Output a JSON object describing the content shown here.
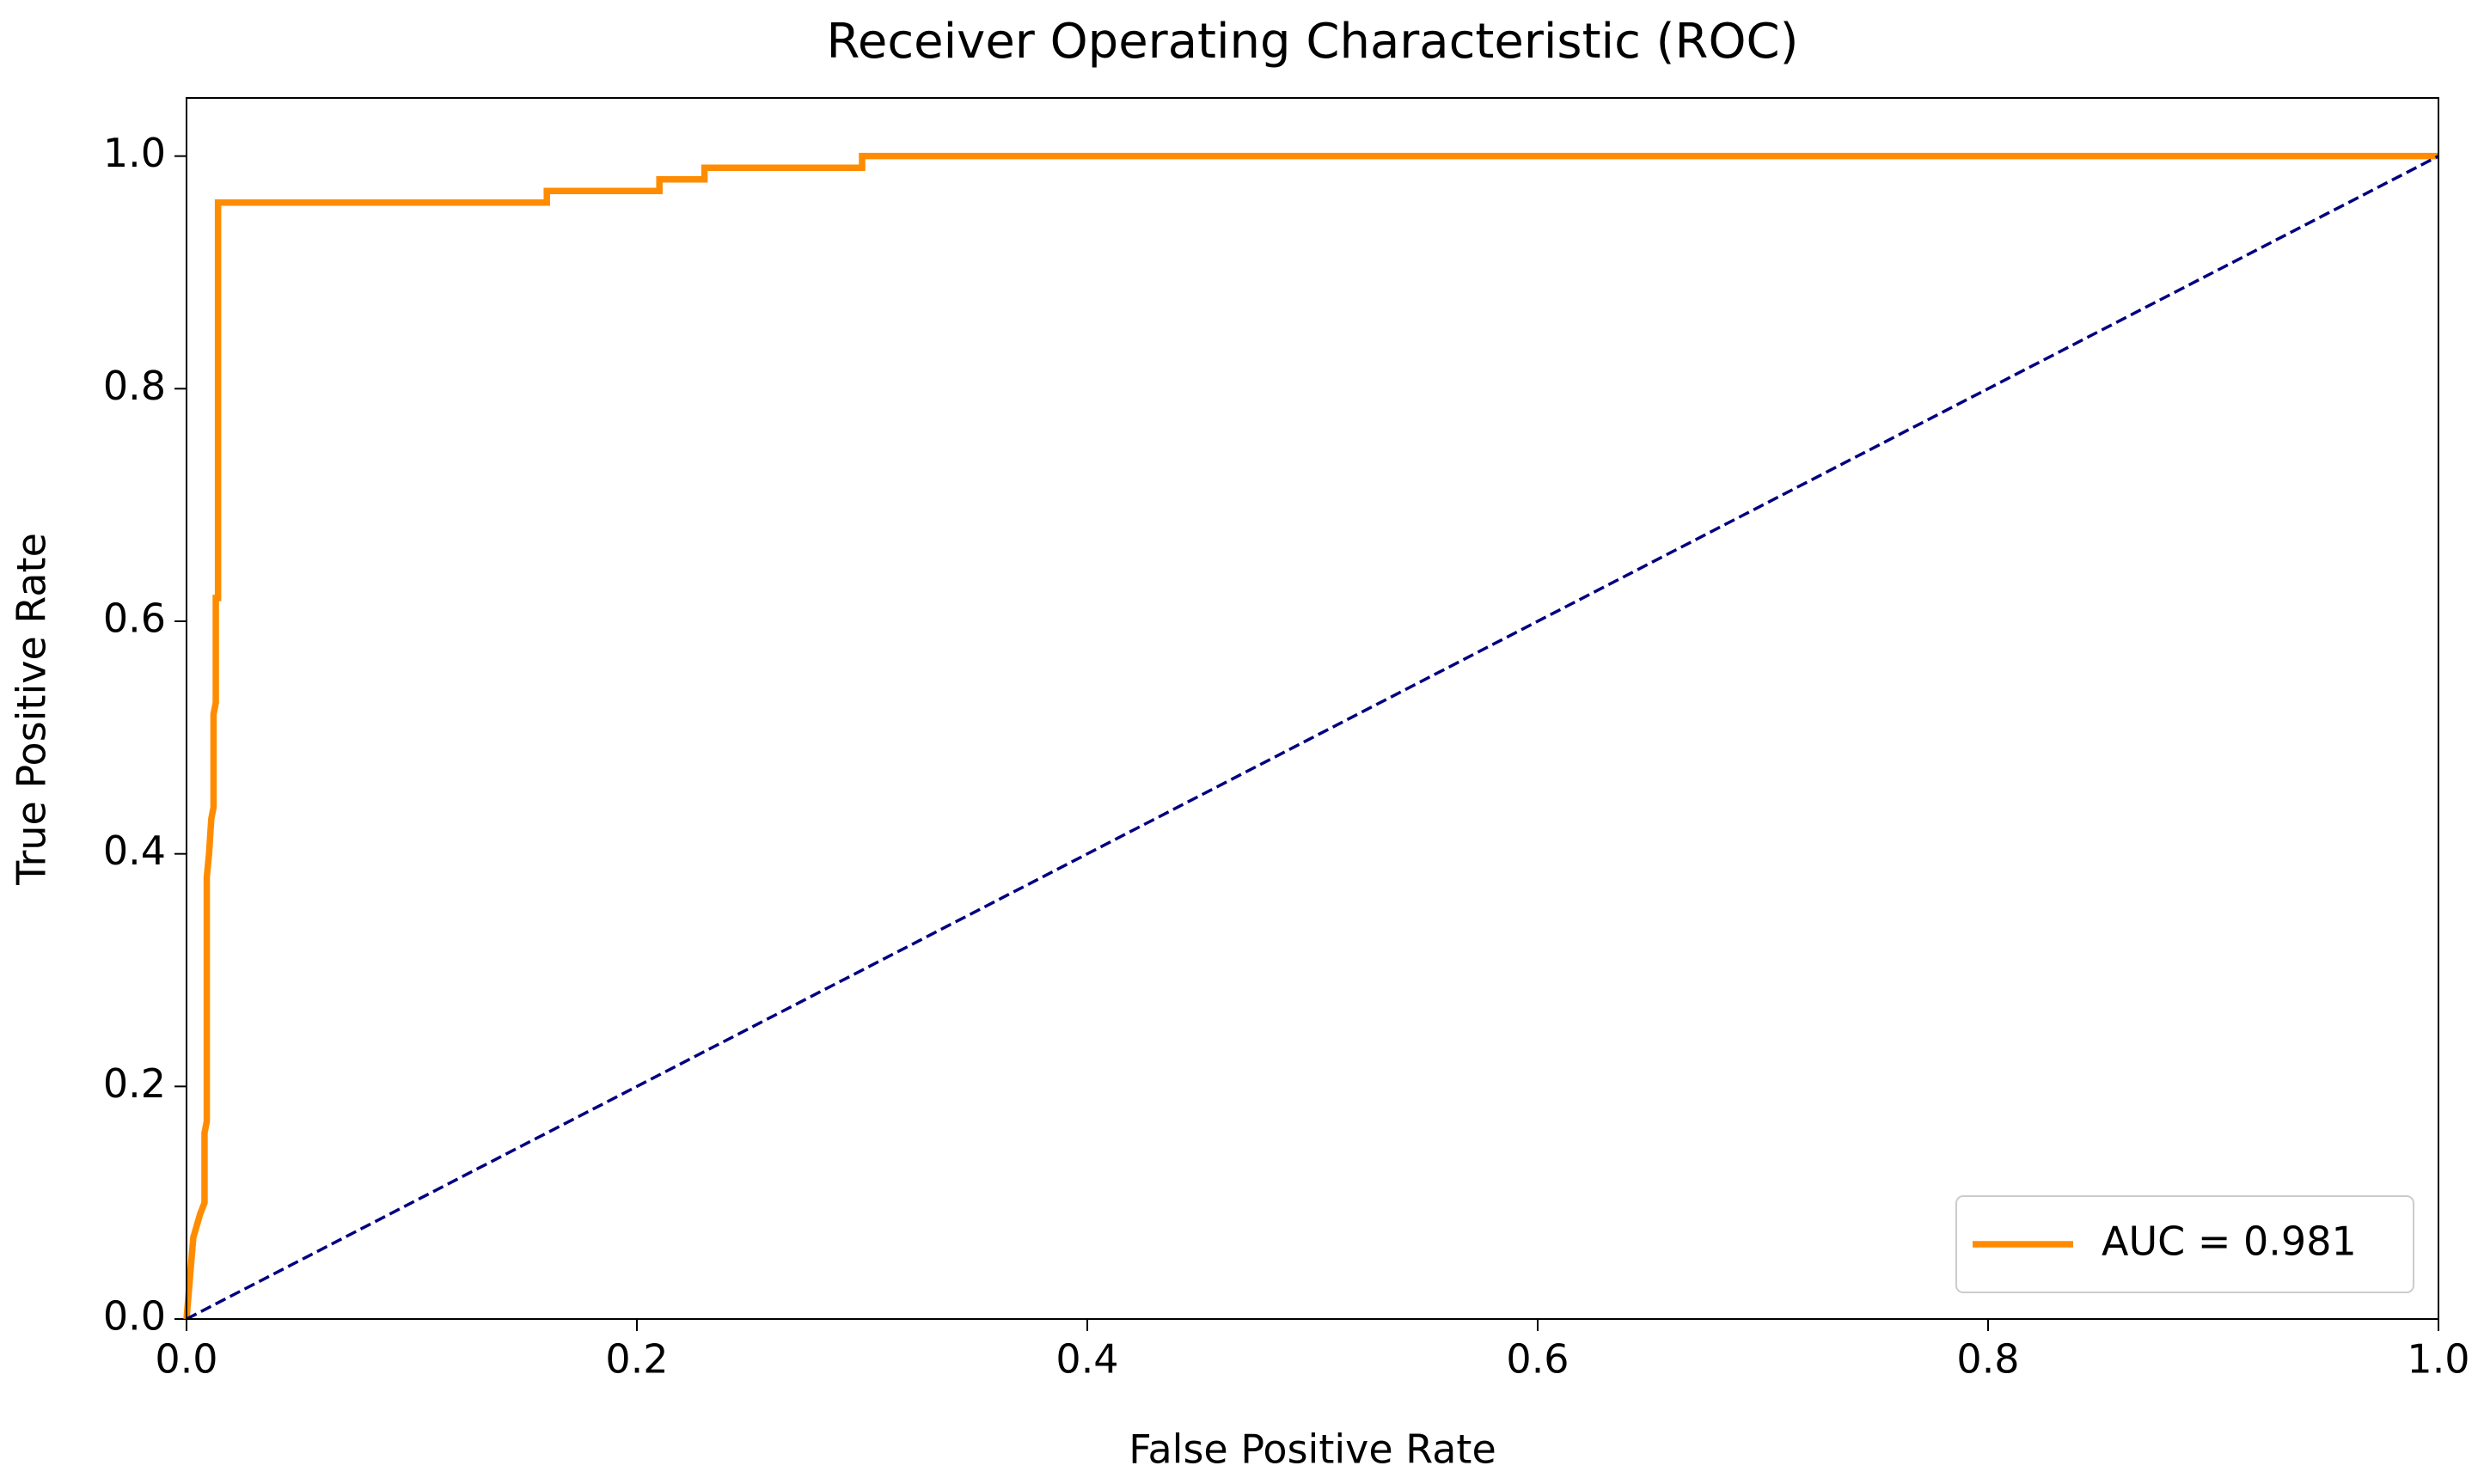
{
  "chart_data": {
    "type": "line",
    "title": "Receiver Operating Characteristic (ROC)",
    "x_label": "False Positive Rate",
    "y_label": "True Positive Rate",
    "xlim": [
      0,
      1
    ],
    "ylim": [
      0,
      1.05
    ],
    "xticks": [
      {
        "value": 0,
        "label": "0.0"
      },
      0.2,
      0.4,
      0.6,
      0.8,
      {
        "value": 1,
        "label": "1.0"
      }
    ],
    "yticks": [
      {
        "value": 0,
        "label": "0.0"
      },
      0.2,
      0.4,
      0.6,
      0.8,
      {
        "value": 1,
        "label": "1.0"
      }
    ],
    "legend": "lower right",
    "series": [
      {
        "name": "AUC = 0.981",
        "color": "#ff8c00",
        "style": "solid",
        "x": [
          0,
          0.003,
          0.006,
          0.008,
          0.008,
          0.009,
          0.009,
          0.01,
          0.011,
          0.012,
          0.012,
          0.013,
          0.013,
          0.014,
          0.014,
          0.16,
          0.16,
          0.21,
          0.21,
          0.23,
          0.23,
          0.3,
          0.3,
          1.0
        ],
        "values": [
          0,
          0.07,
          0.09,
          0.1,
          0.16,
          0.17,
          0.38,
          0.4,
          0.43,
          0.44,
          0.52,
          0.53,
          0.62,
          0.62,
          0.96,
          0.96,
          0.97,
          0.97,
          0.98,
          0.98,
          0.99,
          0.99,
          1.0,
          1.0
        ]
      },
      {
        "color": "#000080",
        "style": "dashed",
        "x": [
          0,
          1
        ],
        "values": [
          0,
          1
        ]
      }
    ]
  }
}
